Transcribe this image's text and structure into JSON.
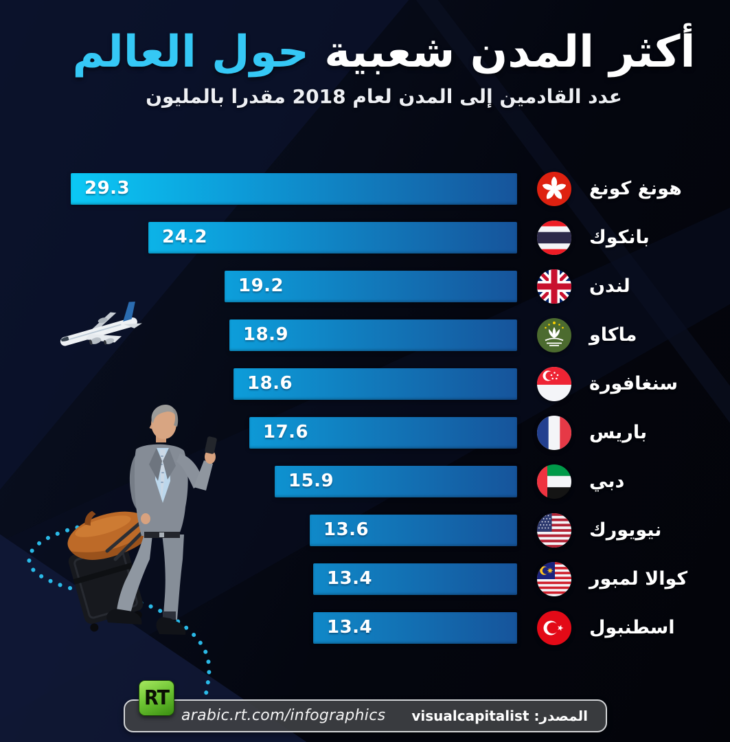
{
  "title": {
    "white": "أكثر المدن شعبية",
    "accent": "حول العالم"
  },
  "subtitle": "عدد القادمين إلى المدن لعام 2018 مقدرا بالمليون",
  "rows": [
    {
      "city": "هونغ كونغ",
      "value": 29.3,
      "flag": "hong-kong"
    },
    {
      "city": "بانكوك",
      "value": 24.2,
      "flag": "thailand"
    },
    {
      "city": "لندن",
      "value": 19.2,
      "flag": "uk"
    },
    {
      "city": "ماكاو",
      "value": 18.9,
      "flag": "macau"
    },
    {
      "city": "سنغافورة",
      "value": 18.6,
      "flag": "singapore"
    },
    {
      "city": "باريس",
      "value": 17.6,
      "flag": "france"
    },
    {
      "city": "دبي",
      "value": 15.9,
      "flag": "uae"
    },
    {
      "city": "نيويورك",
      "value": 13.6,
      "flag": "usa"
    },
    {
      "city": "كوالا لمبور",
      "value": 13.4,
      "flag": "malaysia"
    },
    {
      "city": "اسطنبول",
      "value": 13.4,
      "flag": "turkey"
    }
  ],
  "footer": {
    "url": "arabic.rt.com/infographics",
    "source_text": "المصدر: visualcapitalist",
    "logo_text": "RT"
  },
  "colors": {
    "accent": "#35c8f5",
    "bar_start": "#0bc8f5",
    "bar_end": "#16549b",
    "dots": "#2cc3f2",
    "logo_green": "#6cc332"
  },
  "chart_data": {
    "type": "bar",
    "orientation": "horizontal",
    "title": "أكثر المدن شعبية حول العالم",
    "subtitle": "عدد القادمين إلى المدن لعام 2018 مقدرا بالمليون",
    "categories": [
      "هونغ كونغ",
      "بانكوك",
      "لندن",
      "ماكاو",
      "سنغافورة",
      "باريس",
      "دبي",
      "نيويورك",
      "كوالا لمبور",
      "اسطنبول"
    ],
    "values": [
      29.3,
      24.2,
      19.2,
      18.9,
      18.6,
      17.6,
      15.9,
      13.6,
      13.4,
      13.4
    ],
    "unit": "مليون",
    "xlim": [
      0,
      29.3
    ],
    "value_labels_shown": true,
    "legend": false,
    "grid": false,
    "source": "visualcapitalist"
  }
}
